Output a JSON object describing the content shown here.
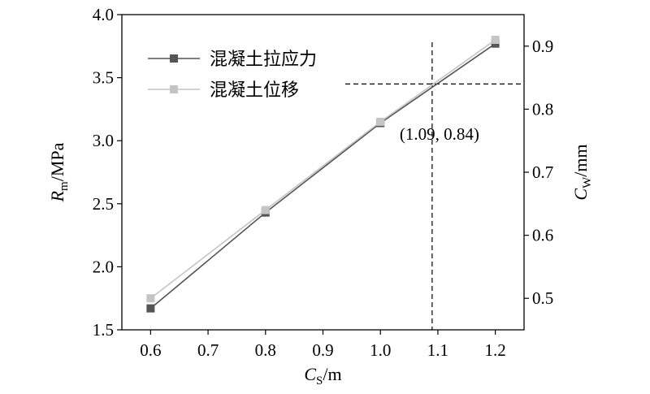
{
  "chart_data": {
    "type": "line",
    "x": [
      0.6,
      0.8,
      1.0,
      1.2
    ],
    "xlim": [
      0.55,
      1.25
    ],
    "xticks": [
      0.6,
      0.7,
      0.8,
      0.9,
      1.0,
      1.1,
      1.2
    ],
    "xtick_labels": [
      "0.6",
      "0.7",
      "0.8",
      "0.9",
      "1.0",
      "1.1",
      "1.2"
    ],
    "ylim_left": [
      1.5,
      4.0
    ],
    "yticks_left": [
      1.5,
      2.0,
      2.5,
      3.0,
      3.5,
      4.0
    ],
    "ytick_labels_left": [
      "1.5",
      "2.0",
      "2.5",
      "3.0",
      "3.5",
      "4.0"
    ],
    "ylim_right": [
      0.45,
      0.95
    ],
    "yticks_right": [
      0.5,
      0.6,
      0.7,
      0.8,
      0.9
    ],
    "ytick_labels_right": [
      "0.5",
      "0.6",
      "0.7",
      "0.8",
      "0.9"
    ],
    "xlabel": {
      "main": "C",
      "sub": "S",
      "unit": "/m"
    },
    "ylabel_left": {
      "main": "R",
      "sub": "m",
      "unit": "/MPa"
    },
    "ylabel_right": {
      "main": "C",
      "sub": "W",
      "unit": "/mm"
    },
    "series": [
      {
        "name": "混凝土拉应力",
        "axis": "left",
        "color": "#555555",
        "values": [
          1.67,
          2.43,
          3.14,
          3.77
        ]
      },
      {
        "name": "混凝土位移",
        "axis": "right",
        "color": "#c4c4c4",
        "values": [
          0.5,
          0.64,
          0.78,
          0.91
        ]
      }
    ],
    "annotation": {
      "x": 1.09,
      "y": 0.84,
      "label": "(1.09, 0.84)"
    },
    "legend_position": "top-left",
    "grid": false
  }
}
